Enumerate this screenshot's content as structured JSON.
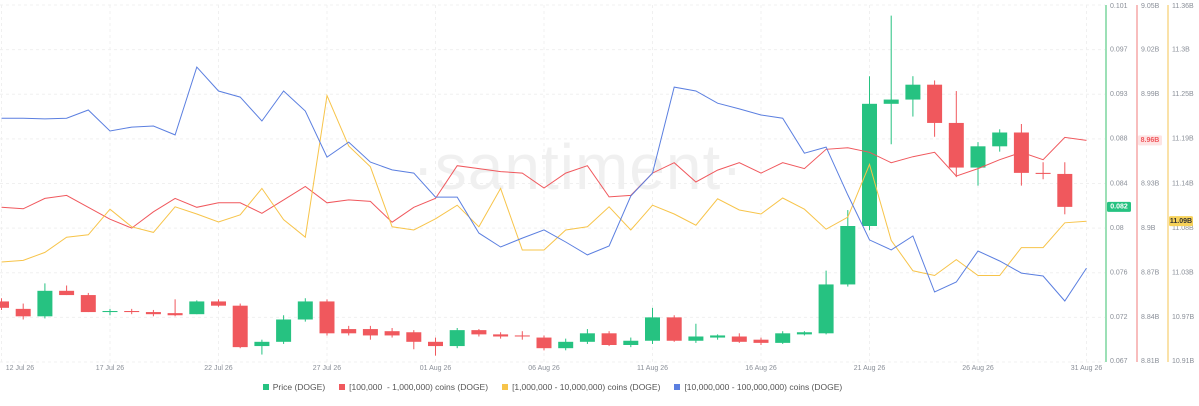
{
  "chart_data": {
    "type": "candlestick",
    "watermark": "·santiment·",
    "grid": true,
    "categories": [
      "12 Jul 26",
      null,
      null,
      null,
      null,
      "17 Jul 26",
      null,
      null,
      null,
      null,
      "22 Jul 26",
      null,
      null,
      null,
      null,
      "27 Jul 26",
      null,
      null,
      null,
      null,
      "01 Aug 26",
      null,
      null,
      null,
      null,
      "06 Aug 26",
      null,
      null,
      null,
      null,
      "11 Aug 26",
      null,
      null,
      null,
      null,
      "16 Aug 26",
      null,
      null,
      null,
      null,
      "21 Aug 26",
      null,
      null,
      null,
      null,
      "26 Aug 26",
      null,
      null,
      null,
      null,
      "31 Aug 26"
    ],
    "ylim": [
      0.0674,
      0.101
    ],
    "yticks": [
      0.101,
      {
        "value": 0.0968,
        "label": "0.097"
      },
      {
        "value": 0.0926,
        "label": "0.093"
      },
      {
        "value": 0.0884,
        "label": "0.088"
      },
      {
        "value": 0.0842,
        "label": "0.084"
      },
      0.08,
      {
        "value": 0.0758,
        "label": "0.076"
      },
      {
        "value": 0.0716,
        "label": "0.072"
      },
      {
        "value": 0.0674,
        "label": "0.067"
      }
    ],
    "y2lim": [
      8810000000,
      9050000000
    ],
    "y2ticks": [
      {
        "value": 9050000000,
        "label": "9.05B"
      },
      {
        "value": 9020000000,
        "label": "9.02B"
      },
      {
        "value": 8990000000,
        "label": "8.99B"
      },
      {
        "value": 8960000000,
        "label": "8.96B"
      },
      {
        "value": 8930000000,
        "label": "8.93B"
      },
      {
        "value": 8900000000,
        "label": "8.9B"
      },
      {
        "value": 8870000000,
        "label": "8.87B"
      },
      {
        "value": 8840000000,
        "label": "8.84B"
      },
      {
        "value": 8810000000,
        "label": "8.81B"
      }
    ],
    "y3lim": [
      10913900000,
      11360300000
    ],
    "y3ticks": [
      {
        "value": 11360300000,
        "label": "11.36B"
      },
      {
        "value": 11304500000,
        "label": "11.3B"
      },
      {
        "value": 11248700000,
        "label": "11.25B"
      },
      {
        "value": 11192900000,
        "label": "11.19B"
      },
      {
        "value": 11137100000,
        "label": "11.14B"
      },
      {
        "value": 11081300000,
        "label": "11.08B"
      },
      {
        "value": 11025500000,
        "label": "11.03B"
      },
      {
        "value": 10969700000,
        "label": "10.97B"
      },
      {
        "value": 10913900000,
        "label": "10.91B"
      }
    ],
    "y4lim": [
      0,
      100
    ],
    "series": [
      {
        "name": "Price (DOGE)",
        "type": "candlestick",
        "axis": "y",
        "color": "#26c281",
        "down_color": "#f0585d",
        "last_value_label": "0.082",
        "open": [
          0.0731,
          0.0724,
          0.0717,
          0.0741,
          0.0737,
          0.0721,
          0.0722,
          0.0721,
          0.072,
          0.0719,
          0.0731,
          0.0727,
          0.0689,
          0.0693,
          0.0714,
          0.0731,
          0.0705,
          0.0705,
          0.0703,
          0.0702,
          0.0693,
          0.0689,
          0.0704,
          0.07,
          0.0699,
          0.0697,
          0.0687,
          0.0693,
          0.0701,
          0.069,
          0.0694,
          0.0716,
          0.0694,
          0.0697,
          0.0698,
          0.0695,
          0.0692,
          0.07,
          0.0701,
          0.0747,
          0.0802,
          0.0917,
          0.0921,
          0.0935,
          0.0899,
          0.0857,
          0.0877,
          0.089,
          0.0852,
          0.0851,
          null
        ],
        "high": [
          0.0734,
          0.0729,
          0.0748,
          0.0746,
          0.0739,
          0.0724,
          0.0724,
          0.0723,
          0.0733,
          0.0732,
          0.0733,
          0.0729,
          0.0695,
          0.0718,
          0.0734,
          0.0733,
          0.0708,
          0.0708,
          0.0706,
          0.0704,
          0.0697,
          0.0706,
          0.0705,
          0.0702,
          0.0703,
          0.0699,
          0.0696,
          0.0705,
          0.0703,
          0.0697,
          0.0725,
          0.0718,
          0.071,
          0.07,
          0.0701,
          0.0697,
          0.0703,
          0.0703,
          0.076,
          0.0817,
          0.0943,
          0.1,
          0.0943,
          0.0939,
          0.0929,
          0.0881,
          0.0893,
          0.0898,
          0.0862,
          0.0862,
          null
        ],
        "low": [
          0.0723,
          0.0714,
          0.0715,
          0.0737,
          0.0721,
          0.0718,
          0.0719,
          0.0717,
          0.0717,
          0.0719,
          0.0726,
          0.0687,
          0.0681,
          0.0691,
          0.0712,
          0.0699,
          0.0699,
          0.0695,
          0.0697,
          0.0686,
          0.068,
          0.0687,
          0.0698,
          0.0696,
          0.0695,
          0.0685,
          0.0685,
          0.0691,
          0.0689,
          0.0688,
          0.0691,
          0.0693,
          0.0692,
          0.0695,
          0.0692,
          0.069,
          0.0691,
          0.0699,
          0.07,
          0.0745,
          0.0798,
          0.0879,
          0.0905,
          0.0886,
          0.0848,
          0.084,
          0.0872,
          0.084,
          0.0846,
          0.0813,
          null
        ],
        "close": [
          0.0725,
          0.0717,
          0.0741,
          0.0737,
          0.0721,
          0.0722,
          0.0721,
          0.0719,
          0.0718,
          0.0731,
          0.0727,
          0.0688,
          0.0693,
          0.0714,
          0.0731,
          0.0701,
          0.0701,
          0.0699,
          0.0699,
          0.0693,
          0.0689,
          0.0704,
          0.07,
          0.0698,
          0.0698,
          0.0687,
          0.0693,
          0.0701,
          0.069,
          0.0694,
          0.0716,
          0.0694,
          0.0698,
          0.0699,
          0.0693,
          0.0692,
          0.0701,
          0.0702,
          0.0747,
          0.0802,
          0.0917,
          0.0921,
          0.0935,
          0.0899,
          0.0857,
          0.0877,
          0.089,
          0.0852,
          0.0851,
          0.082,
          null
        ]
      },
      {
        "name": "[100,000  - 1,000,000) coins (DOGE)",
        "type": "line",
        "axis": "y2",
        "color": "#f0585d",
        "last_value_label": "8.96B",
        "values": [
          8914000000,
          8913000000,
          8920000000,
          8922000000,
          8914000000,
          8906000000,
          8900000000,
          8911000000,
          8920000000,
          8914000000,
          8917000000,
          8917000000,
          8910000000,
          8919000000,
          8928000000,
          8917000000,
          8919000000,
          8918000000,
          8904000000,
          8914000000,
          8920000000,
          8942000000,
          8940000000,
          8938000000,
          8937000000,
          8927000000,
          8937000000,
          8942000000,
          8921000000,
          8922000000,
          8937000000,
          8944000000,
          8931000000,
          8939000000,
          8944000000,
          8937000000,
          8944000000,
          8940000000,
          8953000000,
          8954000000,
          8951000000,
          8944000000,
          8948000000,
          8951000000,
          8935000000,
          8940000000,
          8946000000,
          8951000000,
          8946000000,
          8961000000,
          8959000000
        ]
      },
      {
        "name": "[1,000,000 - 10,000,000) coins (DOGE)",
        "type": "line",
        "axis": "y3",
        "color": "#f7c44a",
        "last_value_label": "11.09B",
        "values": [
          11039000000,
          11041000000,
          11051000000,
          11070000000,
          11073000000,
          11105000000,
          11083000000,
          11076000000,
          11108000000,
          11099000000,
          11089000000,
          11098000000,
          11131000000,
          11092000000,
          11070000000,
          11247000000,
          11184000000,
          11158000000,
          11083000000,
          11079000000,
          11093000000,
          11110000000,
          11083000000,
          11131000000,
          11054000000,
          11054000000,
          11079000000,
          11083000000,
          11108000000,
          11079000000,
          11110000000,
          11099000000,
          11085000000,
          11118000000,
          11104000000,
          11099000000,
          11119000000,
          11105000000,
          11080000000,
          11095000000,
          11161000000,
          11066000000,
          11028000000,
          11022000000,
          11042000000,
          11022000000,
          11022000000,
          11057000000,
          11057000000,
          11088000000,
          11090000000
        ]
      },
      {
        "name": "[10,000,000 - 100,000,000) coins (DOGE)",
        "type": "line",
        "axis": "y4",
        "color": "#5b7fe0",
        "values": [
          68.3,
          68.3,
          68.1,
          68.3,
          70.6,
          64.7,
          65.8,
          66.1,
          63.6,
          82.6,
          75.9,
          74.2,
          67.5,
          75.9,
          70.3,
          57.4,
          61.6,
          56.0,
          53.8,
          52.9,
          46.2,
          46.2,
          36.1,
          32.2,
          34.7,
          37.0,
          33.6,
          30.0,
          32.5,
          46.5,
          52.9,
          77.0,
          75.9,
          72.5,
          70.9,
          69.2,
          68.3,
          58.5,
          60.2,
          46.8,
          34.2,
          31.4,
          35.3,
          19.6,
          22.4,
          31.1,
          28.3,
          24.9,
          24.1,
          17.1,
          26.3
        ]
      }
    ]
  }
}
